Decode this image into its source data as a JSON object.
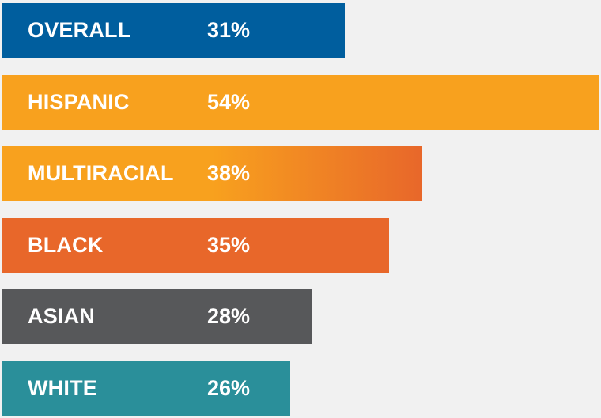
{
  "chart_data": {
    "type": "bar",
    "orientation": "horizontal",
    "categories": [
      "OVERALL",
      "HISPANIC",
      "MULTIRACIAL",
      "BLACK",
      "ASIAN",
      "WHITE"
    ],
    "values": [
      31,
      54,
      38,
      35,
      28,
      26
    ],
    "value_labels": [
      "31%",
      "54%",
      "38%",
      "35%",
      "28%",
      "26%"
    ],
    "unit": "%",
    "xlim": [
      0,
      54
    ],
    "grid": false,
    "legend": "none",
    "colors": [
      "#005e9e",
      "#f8a11e",
      "#f8a11e",
      "#e8672a",
      "#57585a",
      "#2a8f9a"
    ],
    "gradient_end_colors": [
      null,
      null,
      "#e8672a",
      null,
      null,
      null
    ]
  }
}
